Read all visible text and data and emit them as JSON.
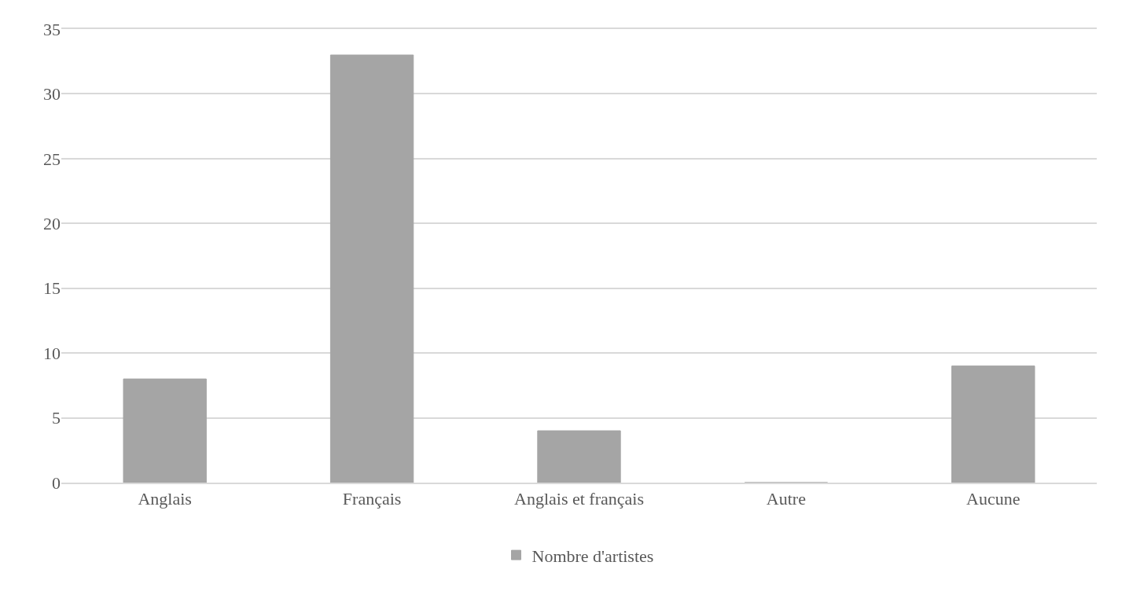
{
  "chart_data": {
    "type": "bar",
    "categories": [
      "Anglais",
      "Français",
      "Anglais et français",
      "Autre",
      "Aucune"
    ],
    "series": [
      {
        "name": "Nombre d'artistes",
        "color": "#a5a5a5",
        "values": [
          8,
          33,
          4,
          0,
          9
        ]
      }
    ],
    "ylim": [
      0,
      35
    ],
    "yticks": [
      0,
      5,
      10,
      15,
      20,
      25,
      30,
      35
    ],
    "grid": "y",
    "legend": "bottom"
  }
}
